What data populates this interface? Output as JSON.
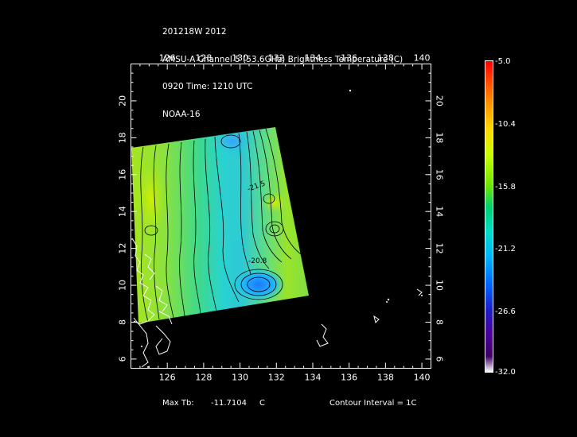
{
  "header": {
    "line1": "201218W 2012",
    "line2": "AMSU-A Channel 5 (53.6GHz) Brightness Temperature (C)",
    "line3": "0920 Time: 1210 UTC",
    "line4": "NOAA-16"
  },
  "map": {
    "lon_ticks": [
      "126",
      "128",
      "130",
      "132",
      "134",
      "136",
      "138",
      "140"
    ],
    "lat_ticks": [
      "6",
      "8",
      "10",
      "12",
      "14",
      "16",
      "18",
      "20"
    ],
    "lon_range": [
      124,
      140.5
    ],
    "lat_range": [
      5.5,
      22
    ],
    "contour_labels": [
      "-21.5",
      "-20.8"
    ],
    "contour_interval_c": 1
  },
  "colorbar": {
    "labels": [
      "-5.0",
      "-10.4",
      "-15.8",
      "-21.2",
      "-26.6",
      "-32.0"
    ],
    "max": -5.0,
    "min": -32.0,
    "colors": [
      "#ff0000",
      "#ffa000",
      "#ffd800",
      "#6ee600",
      "#00dcc8",
      "#0064ff",
      "#4b0096",
      "#ffffff"
    ]
  },
  "footer": {
    "max_label": "Max Tb:",
    "max_value": "-11.7104",
    "max_unit": "C",
    "contour_label": "Contour Interval = 1C"
  }
}
